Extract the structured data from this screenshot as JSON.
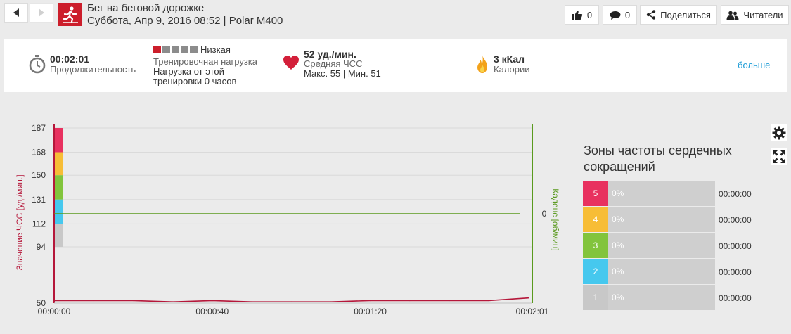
{
  "header": {
    "title": "Бег на беговой дорожке",
    "subtitle": "Суббота, Апр 9, 2016 08:52 | Polar M400",
    "likes_count": "0",
    "comments_count": "0",
    "share_label": "Поделиться",
    "followers_label": "Читатели"
  },
  "summary": {
    "duration_value": "00:02:01",
    "duration_label": "Продолжительность",
    "load_level": "Низкая",
    "load_label": "Тренировочная нагрузка",
    "load_desc_line1": "Нагрузка от этой",
    "load_desc_line2": "тренировки 0 часов",
    "hr_value": "52 уд./мин.",
    "hr_label": "Средняя ЧСС",
    "hr_minmax": "Макс. 55  |  Мин. 51",
    "calories_value": "3 кКал",
    "calories_label": "Калории",
    "more_label": "больше",
    "load_filled_of_five": 1,
    "accent_color": "#cc1e2b"
  },
  "chart_data": {
    "type": "line",
    "series": [
      {
        "name": "Значение ЧСС [уд./мин.]",
        "color": "#b5173a",
        "x": [
          "00:00:00",
          "00:00:10",
          "00:00:20",
          "00:00:30",
          "00:00:40",
          "00:00:50",
          "00:01:00",
          "00:01:10",
          "00:01:20",
          "00:01:30",
          "00:01:40",
          "00:01:50",
          "00:02:00"
        ],
        "values": [
          52,
          52,
          52,
          51,
          52,
          51,
          51,
          51,
          52,
          52,
          52,
          52,
          54
        ]
      },
      {
        "name": "Каденс [об/мин]",
        "color": "#5a9a1e",
        "x": [
          "00:00:00",
          "00:02:00"
        ],
        "values": [
          0,
          0
        ]
      }
    ],
    "x_ticks": [
      "00:00:00",
      "00:00:40",
      "00:01:20",
      "00:02:01"
    ],
    "y_ticks": [
      "187",
      "168",
      "150",
      "131",
      "112",
      "94",
      "50"
    ],
    "ylabel": "Значение ЧСС [уд./мин.]",
    "y2label": "Каденс [об/мин]",
    "y2_tick": "0",
    "ylim": [
      50,
      187
    ],
    "zone_colors": [
      "#e8315f",
      "#f7bd36",
      "#82c43c",
      "#46c8ee",
      "#c8c8c8"
    ],
    "zone_bounds": [
      187,
      168,
      150,
      131,
      112,
      94
    ],
    "grid": true
  },
  "zones": {
    "title": "Зоны частоты сердечных сокращений",
    "rows": [
      {
        "num": "5",
        "pct": "0%",
        "time": "00:00:00",
        "color": "#e8315f"
      },
      {
        "num": "4",
        "pct": "0%",
        "time": "00:00:00",
        "color": "#f7bd36"
      },
      {
        "num": "3",
        "pct": "0%",
        "time": "00:00:00",
        "color": "#82c43c"
      },
      {
        "num": "2",
        "pct": "0%",
        "time": "00:00:00",
        "color": "#46c8ee"
      },
      {
        "num": "1",
        "pct": "0%",
        "time": "00:00:00",
        "color": "#c8c8c8"
      }
    ]
  },
  "icons": {
    "back": "chevron-left-icon",
    "forward": "chevron-right-icon",
    "sport": "treadmill-runner-icon",
    "like": "thumbs-up-icon",
    "comment": "speech-bubble-icon",
    "share": "share-icon",
    "followers": "people-icon",
    "duration": "stopwatch-icon",
    "heart": "heart-icon",
    "calories": "flame-icon",
    "settings": "gear-icon",
    "fullscreen": "expand-icon"
  }
}
